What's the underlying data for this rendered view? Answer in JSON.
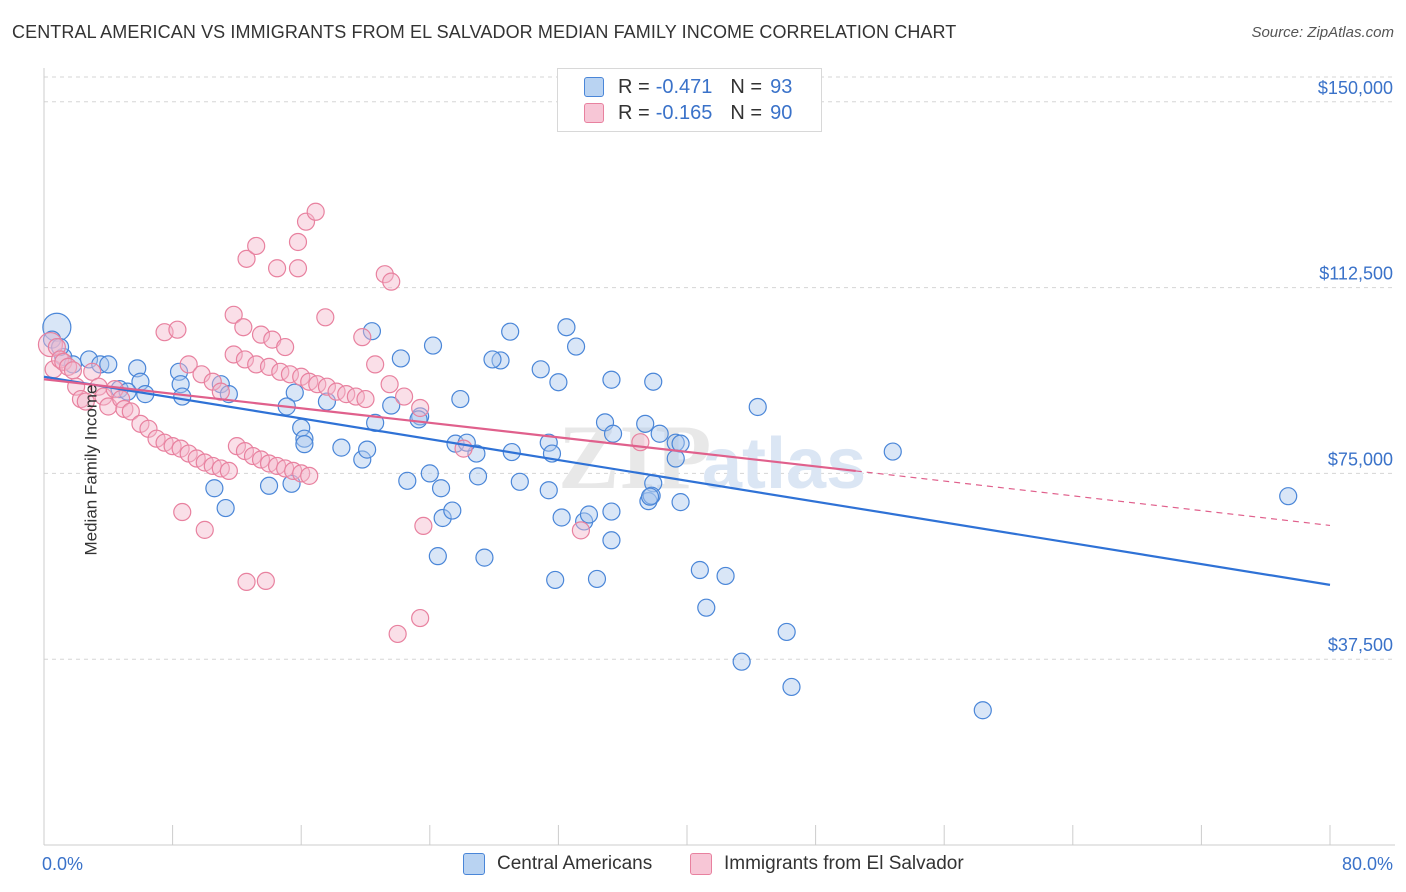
{
  "title": "CENTRAL AMERICAN VS IMMIGRANTS FROM EL SALVADOR MEDIAN FAMILY INCOME CORRELATION CHART",
  "source": "Source: ZipAtlas.com",
  "watermark": {
    "zip": "ZIP",
    "atlas": "atlas"
  },
  "legend": {
    "series1": {
      "r_label": "R =",
      "r_value": "-0.471",
      "n_label": "N =",
      "n_value": "93"
    },
    "series2": {
      "r_label": "R =",
      "r_value": "-0.165",
      "n_label": "N =",
      "n_value": "90"
    }
  },
  "colors": {
    "blue_fill": "#aac8ee",
    "blue_stroke": "#4a86d8",
    "blue_line": "#2f72d6",
    "pink_fill": "#f5b8cc",
    "pink_stroke": "#e8819f",
    "pink_line": "#e0608c",
    "axis_label": "#3a72c9",
    "grid": "#d5d5d5"
  },
  "chart_data": {
    "type": "scatter",
    "title": "CENTRAL AMERICAN VS IMMIGRANTS FROM EL SALVADOR MEDIAN FAMILY INCOME CORRELATION CHART",
    "xlabel": "",
    "ylabel": "Median Family Income",
    "xlim": [
      0,
      80
    ],
    "ylim": [
      0,
      155000
    ],
    "x_tick_labels": [
      "0.0%",
      "80.0%"
    ],
    "y_ticks": [
      37500,
      75000,
      112500,
      150000
    ],
    "y_tick_labels": [
      "$37,500",
      "$75,000",
      "$112,500",
      "$150,000"
    ],
    "series": [
      {
        "name": "Central Americans",
        "color": "#4a86d8",
        "trend": {
          "x0": 0,
          "y0": 94500,
          "x1": 80,
          "y1": 52500
        },
        "points": [
          [
            0.8,
            104500
          ],
          [
            0.5,
            102000
          ],
          [
            1.2,
            98500
          ],
          [
            1.0,
            100500
          ],
          [
            2.8,
            98000
          ],
          [
            3.5,
            97000
          ],
          [
            1.8,
            97000
          ],
          [
            4.0,
            97000
          ],
          [
            5.8,
            96200
          ],
          [
            8.4,
            95500
          ],
          [
            6.0,
            93500
          ],
          [
            8.5,
            93000
          ],
          [
            11.0,
            93000
          ],
          [
            4.7,
            92000
          ],
          [
            5.2,
            91500
          ],
          [
            6.3,
            91000
          ],
          [
            8.6,
            90500
          ],
          [
            11.5,
            91000
          ],
          [
            15.6,
            91300
          ],
          [
            17.6,
            89500
          ],
          [
            15.1,
            88500
          ],
          [
            21.6,
            88700
          ],
          [
            25.9,
            90000
          ],
          [
            24.2,
            100800
          ],
          [
            20.4,
            103700
          ],
          [
            22.2,
            98200
          ],
          [
            20.6,
            85200
          ],
          [
            19.8,
            77800
          ],
          [
            22.6,
            73500
          ],
          [
            24.0,
            75000
          ],
          [
            28.4,
            97800
          ],
          [
            27.9,
            98000
          ],
          [
            29.0,
            103600
          ],
          [
            30.9,
            96000
          ],
          [
            32.5,
            104500
          ],
          [
            33.1,
            100600
          ],
          [
            32.0,
            93400
          ],
          [
            35.3,
            93900
          ],
          [
            37.9,
            93500
          ],
          [
            34.9,
            85300
          ],
          [
            37.4,
            85000
          ],
          [
            38.3,
            83000
          ],
          [
            39.3,
            81200
          ],
          [
            39.6,
            81000
          ],
          [
            31.4,
            81200
          ],
          [
            26.9,
            79000
          ],
          [
            25.6,
            81000
          ],
          [
            23.4,
            86500
          ],
          [
            23.3,
            85900
          ],
          [
            16.0,
            84200
          ],
          [
            16.2,
            82000
          ],
          [
            16.2,
            80900
          ],
          [
            18.5,
            80200
          ],
          [
            20.1,
            79800
          ],
          [
            26.3,
            81200
          ],
          [
            29.1,
            79300
          ],
          [
            31.6,
            79000
          ],
          [
            35.4,
            83000
          ],
          [
            39.3,
            78000
          ],
          [
            44.4,
            88400
          ],
          [
            27.0,
            74400
          ],
          [
            24.7,
            72000
          ],
          [
            24.8,
            66000
          ],
          [
            25.4,
            67500
          ],
          [
            29.6,
            73300
          ],
          [
            31.4,
            71600
          ],
          [
            32.2,
            66100
          ],
          [
            33.6,
            65300
          ],
          [
            33.9,
            66700
          ],
          [
            35.3,
            67300
          ],
          [
            37.6,
            69400
          ],
          [
            39.6,
            69200
          ],
          [
            37.9,
            73000
          ],
          [
            37.8,
            70500
          ],
          [
            37.7,
            70300
          ],
          [
            11.3,
            68000
          ],
          [
            10.6,
            72000
          ],
          [
            14.0,
            72500
          ],
          [
            15.4,
            72900
          ],
          [
            24.5,
            58300
          ],
          [
            27.4,
            58000
          ],
          [
            35.3,
            61500
          ],
          [
            31.8,
            53500
          ],
          [
            34.4,
            53700
          ],
          [
            40.8,
            55500
          ],
          [
            42.4,
            54300
          ],
          [
            46.2,
            43000
          ],
          [
            41.2,
            47900
          ],
          [
            43.4,
            37000
          ],
          [
            46.5,
            31900
          ],
          [
            52.8,
            79400
          ],
          [
            58.4,
            27200
          ],
          [
            77.4,
            70400
          ]
        ]
      },
      {
        "name": "Immigrants from El Salvador",
        "color": "#e8819f",
        "trend": {
          "x0": 0,
          "y0": 94000,
          "x1": 50.5,
          "y1": 75500,
          "dashed_to": {
            "x": 80,
            "y": 64500
          }
        },
        "points": [
          [
            0.4,
            101000
          ],
          [
            0.6,
            96000
          ],
          [
            0.8,
            100500
          ],
          [
            1.0,
            98000
          ],
          [
            1.2,
            97500
          ],
          [
            1.5,
            96500
          ],
          [
            1.8,
            95800
          ],
          [
            2.0,
            92500
          ],
          [
            2.3,
            90000
          ],
          [
            2.6,
            89500
          ],
          [
            3.0,
            95500
          ],
          [
            3.4,
            92500
          ],
          [
            3.7,
            90500
          ],
          [
            4.0,
            88500
          ],
          [
            4.4,
            92000
          ],
          [
            4.8,
            90000
          ],
          [
            5.0,
            88000
          ],
          [
            5.4,
            87500
          ],
          [
            6.0,
            85000
          ],
          [
            6.5,
            84000
          ],
          [
            7.0,
            82000
          ],
          [
            7.5,
            81200
          ],
          [
            8.0,
            80500
          ],
          [
            8.5,
            80000
          ],
          [
            9.0,
            79000
          ],
          [
            9.5,
            78000
          ],
          [
            10.0,
            77200
          ],
          [
            10.5,
            76500
          ],
          [
            11.0,
            76000
          ],
          [
            11.5,
            75500
          ],
          [
            12.0,
            80500
          ],
          [
            12.5,
            79500
          ],
          [
            13.0,
            78500
          ],
          [
            13.5,
            77800
          ],
          [
            14.0,
            77000
          ],
          [
            14.5,
            76500
          ],
          [
            15.0,
            76000
          ],
          [
            15.5,
            75500
          ],
          [
            16.0,
            75000
          ],
          [
            16.5,
            74500
          ],
          [
            7.5,
            103500
          ],
          [
            8.3,
            104000
          ],
          [
            9.0,
            97000
          ],
          [
            9.8,
            95000
          ],
          [
            10.5,
            93500
          ],
          [
            11.0,
            91500
          ],
          [
            11.8,
            99000
          ],
          [
            12.5,
            98000
          ],
          [
            13.2,
            97000
          ],
          [
            14.0,
            96500
          ],
          [
            14.7,
            95500
          ],
          [
            15.3,
            95000
          ],
          [
            16.0,
            94500
          ],
          [
            16.5,
            93500
          ],
          [
            17.0,
            93000
          ],
          [
            17.6,
            92500
          ],
          [
            18.2,
            91500
          ],
          [
            18.8,
            91000
          ],
          [
            19.4,
            90500
          ],
          [
            20.0,
            90000
          ],
          [
            11.8,
            107000
          ],
          [
            12.4,
            104500
          ],
          [
            13.5,
            103000
          ],
          [
            14.2,
            102000
          ],
          [
            15.0,
            100500
          ],
          [
            12.6,
            118300
          ],
          [
            13.2,
            120900
          ],
          [
            14.5,
            116400
          ],
          [
            15.8,
            116400
          ],
          [
            17.5,
            106500
          ],
          [
            19.8,
            102500
          ],
          [
            20.6,
            97000
          ],
          [
            21.5,
            93000
          ],
          [
            22.4,
            90500
          ],
          [
            23.4,
            88200
          ],
          [
            15.8,
            121700
          ],
          [
            16.3,
            125800
          ],
          [
            16.9,
            127800
          ],
          [
            21.2,
            115200
          ],
          [
            21.6,
            113700
          ],
          [
            8.6,
            67200
          ],
          [
            10.0,
            63600
          ],
          [
            12.6,
            53100
          ],
          [
            13.8,
            53300
          ],
          [
            22.0,
            42600
          ],
          [
            23.4,
            45800
          ],
          [
            23.6,
            64400
          ],
          [
            26.1,
            80000
          ],
          [
            37.1,
            81300
          ],
          [
            33.4,
            63500
          ]
        ]
      }
    ]
  }
}
